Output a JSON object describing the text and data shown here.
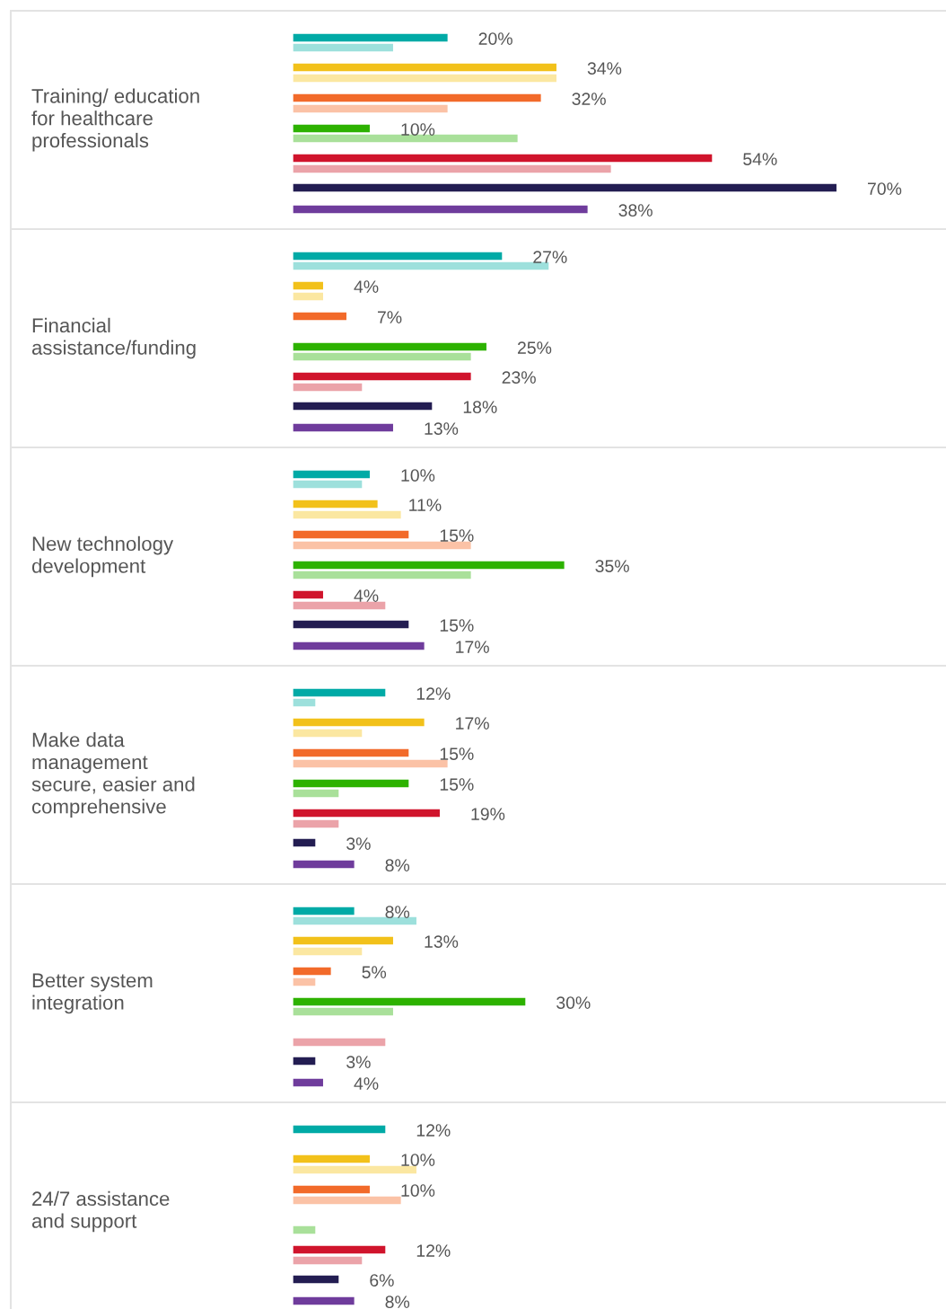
{
  "chart_data": {
    "type": "bar",
    "orientation": "horizontal",
    "xlim": [
      0,
      84
    ],
    "categories": [
      "Training/ education\nfor healthcare\nprofessionals",
      "Financial\nassistance/funding",
      "New technology\ndevelopment",
      "Make data\nmanagement\nsecure, easier and\ncomprehensive",
      "Better system\nintegration",
      "24/7 assistance\nand support"
    ],
    "series": [
      {
        "color": "#00aaa6",
        "values": [
          20,
          27,
          10,
          12,
          8,
          12
        ],
        "value_labels": [
          "20%",
          "27%",
          "10%",
          "12%",
          "8%",
          "12%"
        ]
      },
      {
        "color": "#9de0dc",
        "values": [
          13,
          33,
          9,
          3,
          16,
          null
        ]
      },
      {
        "color": "#f2c11a",
        "values": [
          34,
          4,
          11,
          17,
          13,
          10
        ],
        "value_labels": [
          "34%",
          "4%",
          "11%",
          "17%",
          "13%",
          "10%"
        ]
      },
      {
        "color": "#fbe7a1",
        "values": [
          34,
          4,
          14,
          9,
          9,
          16
        ]
      },
      {
        "color": "#f26a2a",
        "values": [
          32,
          7,
          15,
          15,
          5,
          10
        ],
        "value_labels": [
          "32%",
          "7%",
          "15%",
          "15%",
          "5%",
          "10%"
        ]
      },
      {
        "color": "#fbc2a6",
        "values": [
          20,
          null,
          23,
          20,
          3,
          14
        ]
      },
      {
        "color": "#2db200",
        "values": [
          10,
          25,
          35,
          15,
          30,
          null
        ],
        "value_labels": [
          "10%",
          "25%",
          "35%",
          "15%",
          "30%",
          null
        ]
      },
      {
        "color": "#a9e09a",
        "values": [
          29,
          23,
          23,
          6,
          13,
          3
        ]
      },
      {
        "color": "#d0142c",
        "values": [
          54,
          23,
          4,
          19,
          null,
          12
        ],
        "value_labels": [
          "54%",
          "23%",
          "4%",
          "19%",
          null,
          "12%"
        ]
      },
      {
        "color": "#eba3a9",
        "values": [
          41,
          9,
          12,
          6,
          12,
          9
        ]
      },
      {
        "color": "#231d52",
        "values": [
          70,
          18,
          15,
          3,
          3,
          6
        ],
        "value_labels": [
          "70%",
          "18%",
          "15%",
          "3%",
          "3%",
          "6%"
        ]
      },
      {
        "color": "#6f3c9c",
        "values": [
          38,
          13,
          17,
          8,
          4,
          8
        ],
        "value_labels": [
          "38%",
          "13%",
          "17%",
          "8%",
          "4%",
          "8%"
        ]
      }
    ]
  }
}
